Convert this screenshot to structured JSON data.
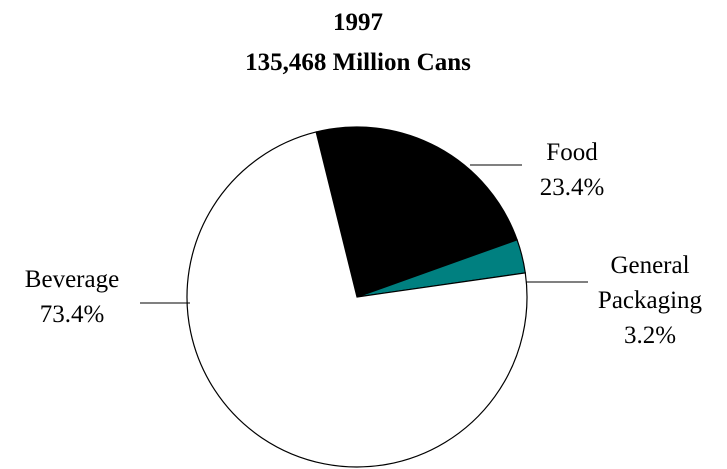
{
  "chart_data": {
    "type": "pie",
    "title": "1997",
    "subtitle": "135,468 Million Cans",
    "slices": [
      {
        "label": "Food",
        "lines": [
          "Food"
        ],
        "value": 23.4,
        "value_label": "23.4%",
        "color": "#000000"
      },
      {
        "label": "General Packaging",
        "lines": [
          "General",
          "Packaging"
        ],
        "value": 3.2,
        "value_label": "3.2%",
        "color": "#008080"
      },
      {
        "label": "Beverage",
        "lines": [
          "Beverage"
        ],
        "value": 73.4,
        "value_label": "73.4%",
        "color": "#ffffff"
      }
    ],
    "legend": "none"
  }
}
